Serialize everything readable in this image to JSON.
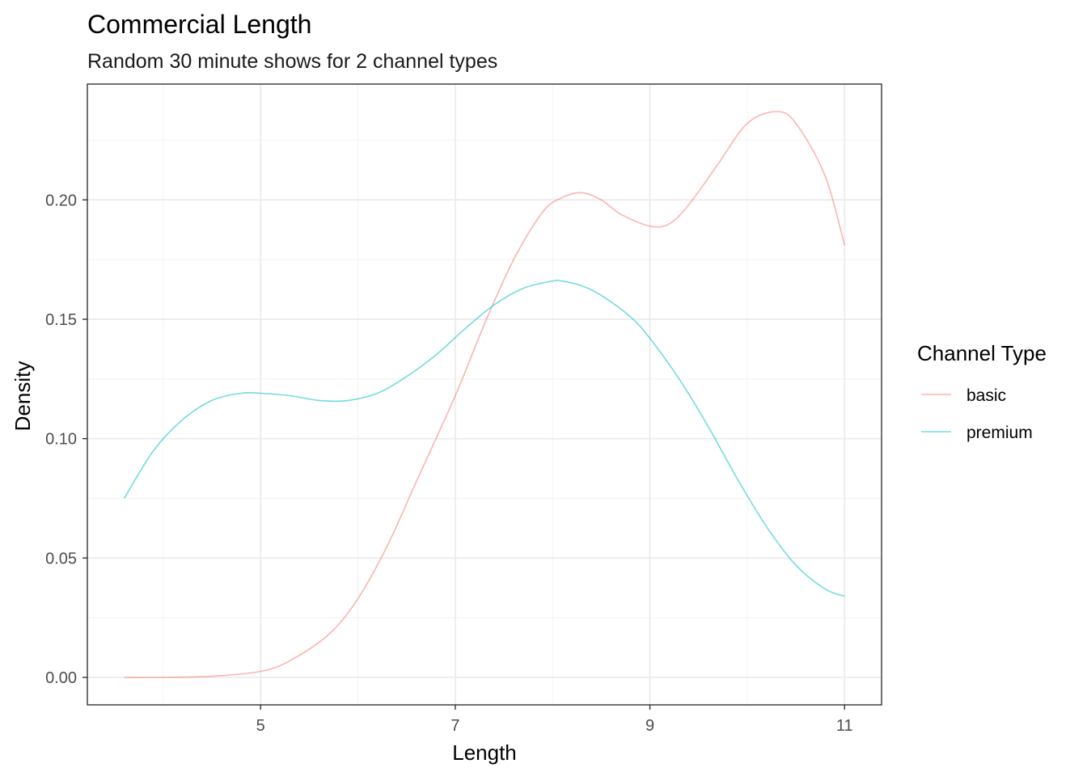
{
  "chart_data": {
    "type": "line",
    "title": "Commercial Length",
    "subtitle": "Random 30 minute shows for 2 channel types",
    "xlabel": "Length",
    "ylabel": "Density",
    "xlim": [
      3.22,
      11.38
    ],
    "ylim": [
      -0.0115,
      0.2485
    ],
    "xticks": [
      5,
      7,
      9,
      11
    ],
    "xtick_labels": [
      "5",
      "7",
      "9",
      "11"
    ],
    "yticks": [
      0.0,
      0.05,
      0.1,
      0.15,
      0.2
    ],
    "ytick_labels": [
      "0.00",
      "0.05",
      "0.10",
      "0.15",
      "0.20"
    ],
    "grid": true,
    "legend": {
      "title": "Channel Type",
      "position": "right"
    },
    "series": [
      {
        "name": "basic",
        "color": "#F8766D",
        "x": [
          3.6,
          4.0,
          4.5,
          5.0,
          5.3,
          5.7,
          6.0,
          6.3,
          6.6,
          7.0,
          7.3,
          7.6,
          7.9,
          8.1,
          8.3,
          8.5,
          8.7,
          9.0,
          9.2,
          9.4,
          9.7,
          10.0,
          10.3,
          10.5,
          10.8,
          11.0
        ],
        "y": [
          0.0,
          0.0,
          0.0005,
          0.0025,
          0.007,
          0.018,
          0.033,
          0.055,
          0.082,
          0.118,
          0.148,
          0.175,
          0.195,
          0.201,
          0.203,
          0.2,
          0.194,
          0.189,
          0.19,
          0.198,
          0.215,
          0.232,
          0.237,
          0.232,
          0.21,
          0.181
        ]
      },
      {
        "name": "premium",
        "color": "#00BFC4",
        "x": [
          3.6,
          3.9,
          4.2,
          4.5,
          4.8,
          5.0,
          5.3,
          5.6,
          5.9,
          6.2,
          6.5,
          6.8,
          7.1,
          7.4,
          7.7,
          8.0,
          8.1,
          8.3,
          8.5,
          8.8,
          9.0,
          9.3,
          9.6,
          9.9,
          10.2,
          10.5,
          10.8,
          11.0
        ],
        "y": [
          0.075,
          0.095,
          0.108,
          0.116,
          0.119,
          0.119,
          0.118,
          0.116,
          0.116,
          0.119,
          0.126,
          0.135,
          0.146,
          0.156,
          0.163,
          0.166,
          0.166,
          0.164,
          0.16,
          0.151,
          0.142,
          0.125,
          0.105,
          0.083,
          0.063,
          0.047,
          0.037,
          0.034
        ]
      }
    ]
  }
}
